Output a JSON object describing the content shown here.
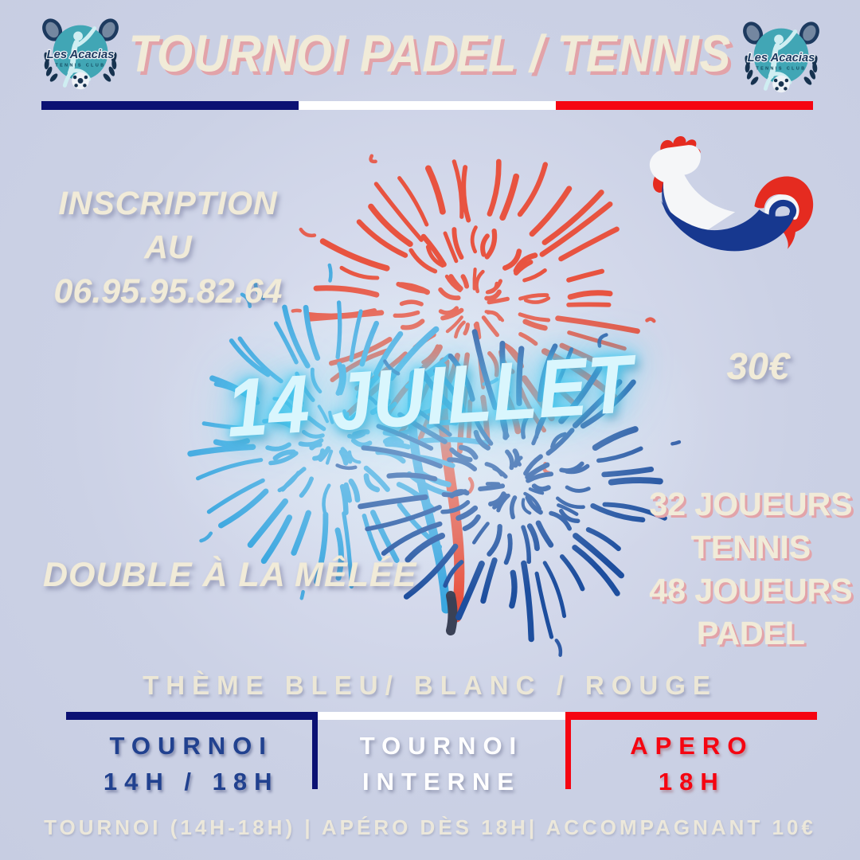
{
  "header": {
    "title": "TOURNOI PADEL / TENNIS"
  },
  "logo": {
    "name": "Les Acacias",
    "subtitle": "TENNIS CLUB"
  },
  "inscription": {
    "line1": "INSCRIPTION",
    "line2": "AU",
    "phone": "06.95.95.82.64"
  },
  "event": {
    "date": "14 JUILLET",
    "price": "30€",
    "format": "DOUBLE À LA MÊLÉE",
    "players": {
      "line1": "32 JOUEURS",
      "line2": "TENNIS",
      "line3": "48 JOUEURS",
      "line4": "PADEL"
    },
    "theme": "THÈME BLEU/ BLANC / ROUGE"
  },
  "schedule": {
    "sections": [
      {
        "line1": "TOURNOI",
        "line2": "14H / 18H"
      },
      {
        "line1": "TOURNOI",
        "line2": "INTERNE"
      },
      {
        "line1": "APERO",
        "line2": "18H"
      }
    ]
  },
  "footer": "TOURNOI (14H-18H) | APÉRO DÈS 18H| ACCOMPAGNANT 10€",
  "icons": {
    "rooster": "french-rooster",
    "club_badge": "les-acacias-tennis-club-badge",
    "fireworks": [
      "firework-red",
      "firework-blue-light",
      "firework-blue-dark"
    ]
  },
  "colors": {
    "background": "#cdd3e7",
    "cream": "#f1ebd8",
    "pink_shadow": "#e2a3a9",
    "navy": "#0b1173",
    "navy_text": "#21418f",
    "red": "#f50511",
    "date_fill": "#d9f6fd",
    "date_glow": "#45cbf2",
    "firework_red": "#e85340",
    "firework_blue_light": "#3aa6df",
    "firework_blue_dark": "#1d4e9e",
    "rooster_red": "#e52b20",
    "rooster_blue": "#17388f",
    "logo_teal": "#41a6b5",
    "logo_navy": "#1d3a5f"
  }
}
